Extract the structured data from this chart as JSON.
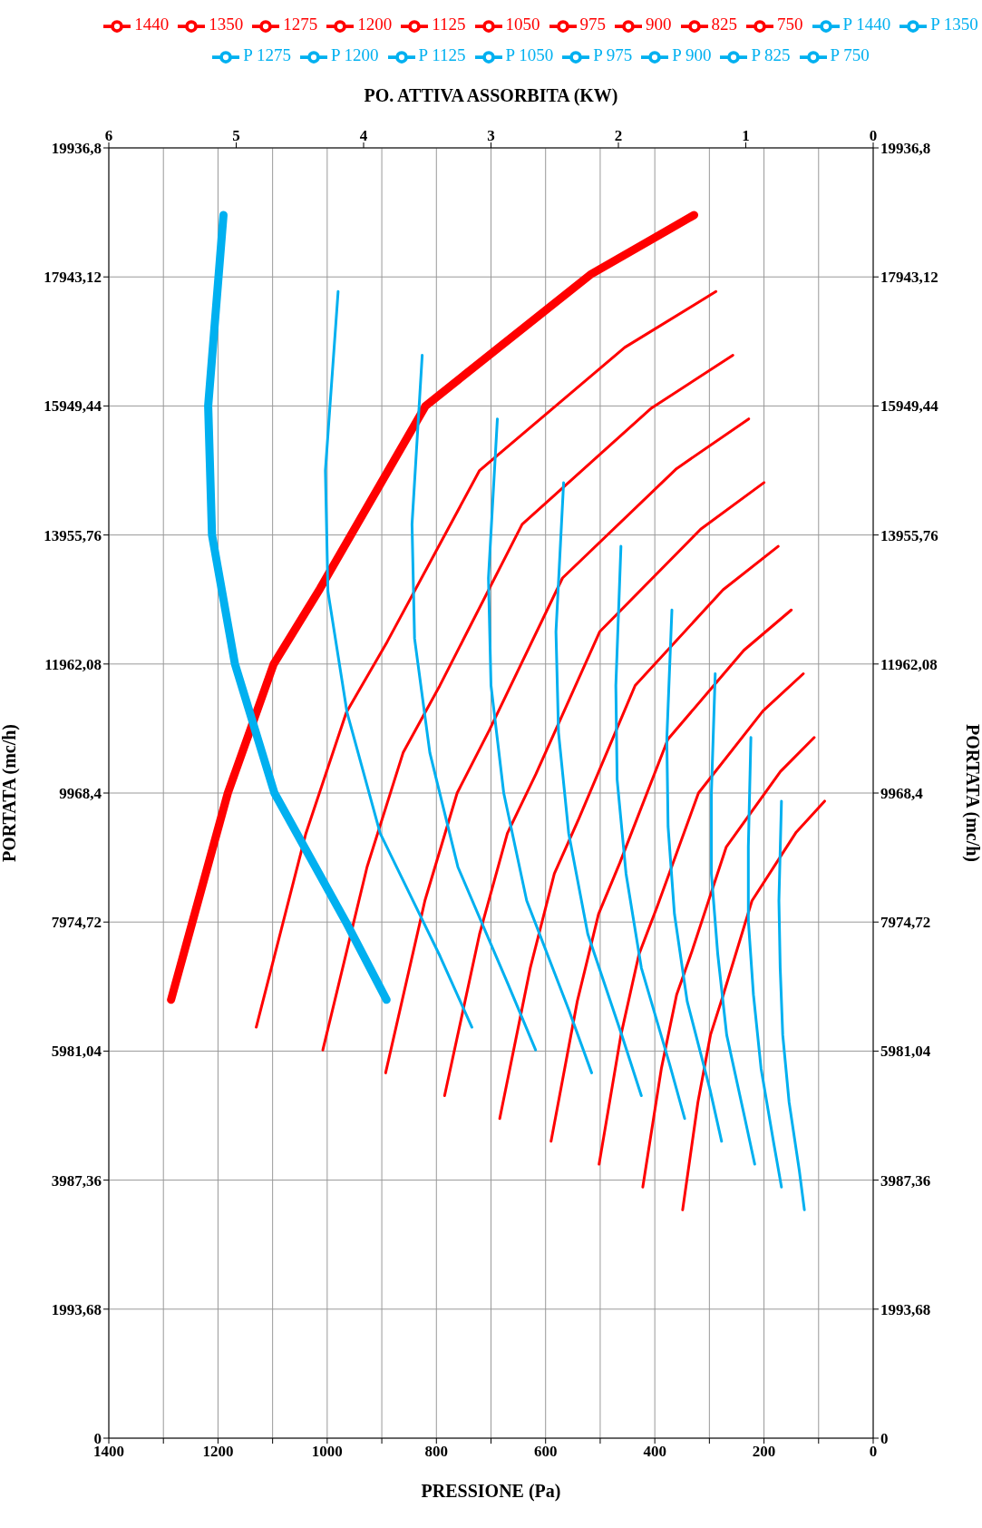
{
  "chart_data": {
    "type": "line",
    "xlabel": "PRESSIONE (Pa)",
    "x2label": "PO. ATTIVA ASSORBITA (KW)",
    "ylabel": "PORTATA (mc/h)",
    "y2label": "PORTATA (mc/h)",
    "xlim": [
      1400,
      0
    ],
    "xticks": [
      0,
      {
        "value": 100,
        "label": null
      },
      200,
      {
        "value": 300,
        "label": null
      },
      400,
      {
        "value": 500,
        "label": null
      },
      600,
      {
        "value": 700,
        "label": null
      },
      800,
      {
        "value": 900,
        "label": null
      },
      1000,
      {
        "value": 1100,
        "label": null
      },
      1200,
      {
        "value": 1300,
        "label": null
      },
      1400
    ],
    "x2lim": [
      6,
      0
    ],
    "x2ticks": [
      0,
      1,
      2,
      3,
      4,
      5,
      6
    ],
    "ylim": [
      0,
      19936.8
    ],
    "yticks": [
      0,
      {
        "value": 1993.68,
        "label": "1993,68"
      },
      {
        "value": 3987.36,
        "label": "3987,36"
      },
      {
        "value": 5981.04,
        "label": "5981,04"
      },
      {
        "value": 7974.72,
        "label": "7974,72"
      },
      {
        "value": 9968.4,
        "label": "9968,4"
      },
      {
        "value": 11962.08,
        "label": "11962,08"
      },
      {
        "value": 13955.76,
        "label": "13955,76"
      },
      {
        "value": 15949.44,
        "label": "15949,44"
      },
      {
        "value": 17943.12,
        "label": "17943,12"
      },
      {
        "value": 19936.8,
        "label": "19936,8"
      }
    ],
    "y2lim": [
      0,
      19936.8
    ],
    "y2ticks": [
      0,
      {
        "value": 1993.68,
        "label": "1993,68"
      },
      {
        "value": 3987.36,
        "label": "3987,36"
      },
      {
        "value": 5981.04,
        "label": "5981,04"
      },
      {
        "value": 7974.72,
        "label": "7974,72"
      },
      {
        "value": 9968.4,
        "label": "9968,4"
      },
      {
        "value": 11962.08,
        "label": "11962,08"
      },
      {
        "value": 13955.76,
        "label": "13955,76"
      },
      {
        "value": 15949.44,
        "label": "15949,44"
      },
      {
        "value": 17943.12,
        "label": "17943,12"
      },
      {
        "value": 19936.8,
        "label": "19936,8"
      }
    ],
    "grid": true,
    "legend": "top",
    "marker": "none",
    "line_style": "solid",
    "series": [
      {
        "name": "1440",
        "color": "#ff0000",
        "x": [
          1286,
          1182,
          1098,
          1013,
          820,
          518,
          328
        ],
        "values": [
          6774,
          9968,
          11962,
          13129,
          15949,
          17978,
          18899
        ]
      },
      {
        "name": "1350",
        "color": "#ff0000",
        "x": [
          1130,
          1039,
          965,
          890,
          721,
          455,
          288
        ],
        "values": [
          6351,
          9345,
          11214,
          12308,
          14952,
          16854,
          17718
        ]
      },
      {
        "name": "1275",
        "color": "#ff0000",
        "x": [
          1008,
          927,
          861,
          794,
          643,
          406,
          257
        ],
        "values": [
          5998,
          8826,
          10591,
          11624,
          14121,
          15918,
          16733
        ]
      },
      {
        "name": "1200",
        "color": "#ff0000",
        "x": [
          893,
          821,
          762,
          703,
          569,
          360,
          228
        ],
        "values": [
          5645,
          8307,
          9968,
          10941,
          13291,
          14982,
          15749
        ]
      },
      {
        "name": "1125",
        "color": "#ff0000",
        "x": [
          785,
          721,
          670,
          618,
          501,
          316,
          200
        ],
        "values": [
          5292,
          7788,
          9345,
          10257,
          12460,
          14045,
          14765
        ]
      },
      {
        "name": "1050",
        "color": "#ff0000",
        "x": [
          684,
          628,
          584,
          539,
          436,
          275,
          174
        ],
        "values": [
          4939,
          7268,
          8722,
          9573,
          11630,
          13109,
          13781
        ]
      },
      {
        "name": "975",
        "color": "#ff0000",
        "x": [
          590,
          542,
          503,
          464,
          376,
          237,
          150
        ],
        "values": [
          4587,
          6749,
          8099,
          8890,
          10799,
          12173,
          12797
        ]
      },
      {
        "name": "900",
        "color": "#ff0000",
        "x": [
          502,
          462,
          429,
          396,
          320,
          202,
          128
        ],
        "values": [
          4234,
          6230,
          7476,
          8206,
          9968,
          11236,
          11812
        ]
      },
      {
        "name": "825",
        "color": "#ff0000",
        "x": [
          422,
          388,
          360,
          332,
          269,
          170,
          108
        ],
        "values": [
          3881,
          5711,
          6853,
          7522,
          9137,
          10300,
          10827
        ]
      },
      {
        "name": "750",
        "color": "#ff0000",
        "x": [
          349,
          321,
          298,
          275,
          222,
          141,
          89
        ],
        "values": [
          3528,
          5191,
          6230,
          6838,
          8304,
          9363,
          9843
        ]
      },
      {
        "name": "P 1440",
        "color": "#00b0f0",
        "axis": "x2",
        "x": [
          3.82,
          4.13,
          4.7,
          5.01,
          5.19,
          5.22,
          5.1
        ],
        "values": [
          6774,
          7945,
          9968,
          11962,
          13956,
          15949,
          18899
        ]
      },
      {
        "name": "P 1350",
        "color": "#00b0f0",
        "axis": "x2",
        "x": [
          3.15,
          3.4,
          3.87,
          4.13,
          4.28,
          4.3,
          4.2
        ],
        "values": [
          6351,
          7448,
          9345,
          11214,
          13084,
          14952,
          17718
        ]
      },
      {
        "name": "P 1275",
        "color": "#00b0f0",
        "axis": "x2",
        "x": [
          2.65,
          2.87,
          3.26,
          3.48,
          3.6,
          3.62,
          3.54
        ],
        "values": [
          5998,
          7032,
          8826,
          10591,
          12357,
          14121,
          16733
        ]
      },
      {
        "name": "P 1200",
        "color": "#00b0f0",
        "axis": "x2",
        "x": [
          2.21,
          2.39,
          2.72,
          2.9,
          3.0,
          3.02,
          2.95
        ],
        "values": [
          5645,
          6621,
          8307,
          9968,
          11630,
          13291,
          15749
        ]
      },
      {
        "name": "P 1125",
        "color": "#00b0f0",
        "axis": "x2",
        "x": [
          1.82,
          1.97,
          2.24,
          2.39,
          2.47,
          2.49,
          2.43
        ],
        "values": [
          5292,
          6207,
          7788,
          9345,
          10903,
          12460,
          14765
        ]
      },
      {
        "name": "P 1050",
        "color": "#00b0f0",
        "axis": "x2",
        "x": [
          1.48,
          1.6,
          1.82,
          1.94,
          2.01,
          2.02,
          1.98
        ],
        "values": [
          4939,
          5793,
          7268,
          8722,
          10177,
          11630,
          13781
        ]
      },
      {
        "name": "P 975",
        "color": "#00b0f0",
        "axis": "x2",
        "x": [
          1.19,
          1.28,
          1.46,
          1.56,
          1.61,
          1.62,
          1.58
        ],
        "values": [
          4587,
          5379,
          6749,
          8099,
          9450,
          10799,
          12797
        ]
      },
      {
        "name": "P 900",
        "color": "#00b0f0",
        "axis": "x2",
        "x": [
          0.93,
          1.01,
          1.15,
          1.22,
          1.27,
          1.27,
          1.24
        ],
        "values": [
          4234,
          4966,
          6230,
          7476,
          8723,
          9968,
          11812
        ]
      },
      {
        "name": "P 825",
        "color": "#00b0f0",
        "axis": "x2",
        "x": [
          0.72,
          0.78,
          0.88,
          0.94,
          0.98,
          0.98,
          0.96
        ],
        "values": [
          3881,
          4551,
          5711,
          6853,
          7995,
          9137,
          10827
        ]
      },
      {
        "name": "P 750",
        "color": "#00b0f0",
        "axis": "x2",
        "x": [
          0.54,
          0.58,
          0.66,
          0.71,
          0.73,
          0.74,
          0.72
        ],
        "values": [
          3528,
          4136,
          5191,
          6230,
          7268,
          8306,
          9843
        ]
      }
    ]
  }
}
